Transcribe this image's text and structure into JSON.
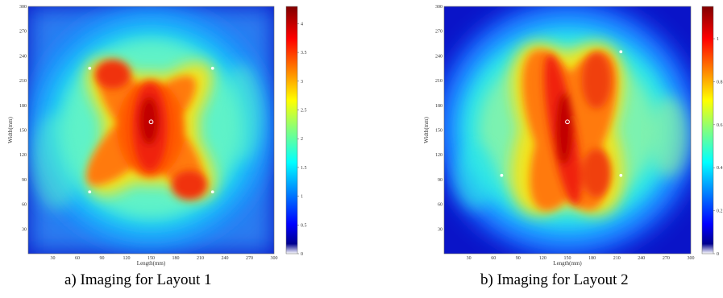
{
  "chart_data": [
    {
      "type": "heatmap",
      "caption": "a) Imaging for Layout 1",
      "xlabel": "Length(mm)",
      "ylabel": "Width(mm)",
      "xlim": [
        0,
        300
      ],
      "ylim": [
        0,
        300
      ],
      "x_ticks": [
        "30",
        "60",
        "90",
        "120",
        "150",
        "180",
        "210",
        "240",
        "270",
        "300"
      ],
      "y_ticks": [
        "30",
        "60",
        "90",
        "120",
        "150",
        "180",
        "210",
        "240",
        "270",
        "300"
      ],
      "colorbar": {
        "range": [
          0,
          4.3
        ],
        "ticks": [
          "0",
          "0.5",
          "1",
          "1.5",
          "2",
          "2.5",
          "3",
          "3.5",
          "4"
        ],
        "colormap": "jet"
      },
      "markers": [
        {
          "x": 150,
          "y": 160
        },
        {
          "x": 75,
          "y": 225
        },
        {
          "x": 225,
          "y": 225
        },
        {
          "x": 75,
          "y": 75
        },
        {
          "x": 225,
          "y": 75
        }
      ]
    },
    {
      "type": "heatmap",
      "caption": "b) Imaging for Layout 2",
      "xlabel": "Length(mm)",
      "ylabel": "Width(mm)",
      "xlim": [
        0,
        300
      ],
      "ylim": [
        0,
        300
      ],
      "x_ticks": [
        "30",
        "60",
        "90",
        "120",
        "150",
        "180",
        "210",
        "240",
        "270",
        "300"
      ],
      "y_ticks": [
        "30",
        "60",
        "90",
        "120",
        "150",
        "180",
        "210",
        "240",
        "270",
        "300"
      ],
      "colorbar": {
        "range": [
          0,
          1.15
        ],
        "ticks": [
          "0",
          "0.2",
          "0.4",
          "0.6",
          "0.8",
          "1"
        ],
        "colormap": "jet"
      },
      "markers": [
        {
          "x": 150,
          "y": 160
        },
        {
          "x": 215,
          "y": 245
        },
        {
          "x": 70,
          "y": 95
        },
        {
          "x": 215,
          "y": 95
        }
      ]
    }
  ]
}
